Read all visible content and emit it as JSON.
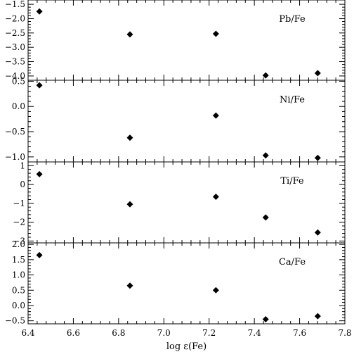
{
  "chart_data": {
    "type": "scatter",
    "x_axis": {
      "label": "log ε(Fe)",
      "lim": [
        6.4,
        7.8
      ],
      "ticks": [
        6.4,
        6.6,
        6.8,
        7.0,
        7.2,
        7.4,
        7.6,
        7.8
      ],
      "tick_labels": [
        "6.4",
        "6.6",
        "6.8",
        "7.0",
        "7.2",
        "7.4",
        "7.6",
        "7.8"
      ]
    },
    "marker": "diamond",
    "marker_color": "#000000",
    "panels": [
      {
        "label": "Pb/Fe",
        "ylim": [
          -4.15,
          -1.35
        ],
        "yticks": [
          -4.0,
          -3.5,
          -3.0,
          -2.5,
          -2.0,
          -1.5
        ],
        "ytick_labels": [
          "−4.0",
          "−3.5",
          "−3.0",
          "−2.5",
          "−2.0",
          "−1.5"
        ],
        "x": [
          6.45,
          6.85,
          7.23,
          7.45,
          7.68
        ],
        "y": [
          -1.75,
          -2.55,
          -2.53,
          -3.98,
          -3.9
        ]
      },
      {
        "label": "Ni/Fe",
        "ylim": [
          -1.1,
          0.52
        ],
        "yticks": [
          -1.0,
          -0.5,
          0.0,
          0.5
        ],
        "ytick_labels": [
          "−1.0",
          "−0.5",
          "0.0",
          "0.5"
        ],
        "x": [
          6.45,
          6.85,
          7.23,
          7.45,
          7.68
        ],
        "y": [
          0.42,
          -0.62,
          -0.18,
          -0.97,
          -1.02
        ]
      },
      {
        "label": "Ti/Fe",
        "ylim": [
          -3.1,
          1.2
        ],
        "yticks": [
          -3,
          -2,
          -1,
          0,
          1
        ],
        "ytick_labels": [
          "−3",
          "−2",
          "−1",
          "0",
          "1"
        ],
        "x": [
          6.45,
          6.85,
          7.23,
          7.45,
          7.68
        ],
        "y": [
          0.55,
          -1.05,
          -0.65,
          -1.75,
          -2.55
        ]
      },
      {
        "label": "Ca/Fe",
        "ylim": [
          -0.6,
          2.05
        ],
        "yticks": [
          -0.5,
          0.0,
          0.5,
          1.0,
          1.5,
          2.0
        ],
        "ytick_labels": [
          "−0.5",
          "0.0",
          "0.5",
          "1.0",
          "1.5",
          "2.0"
        ],
        "x": [
          6.45,
          6.85,
          7.23,
          7.45,
          7.68
        ],
        "y": [
          1.65,
          0.65,
          0.5,
          -0.45,
          -0.35
        ]
      }
    ]
  }
}
